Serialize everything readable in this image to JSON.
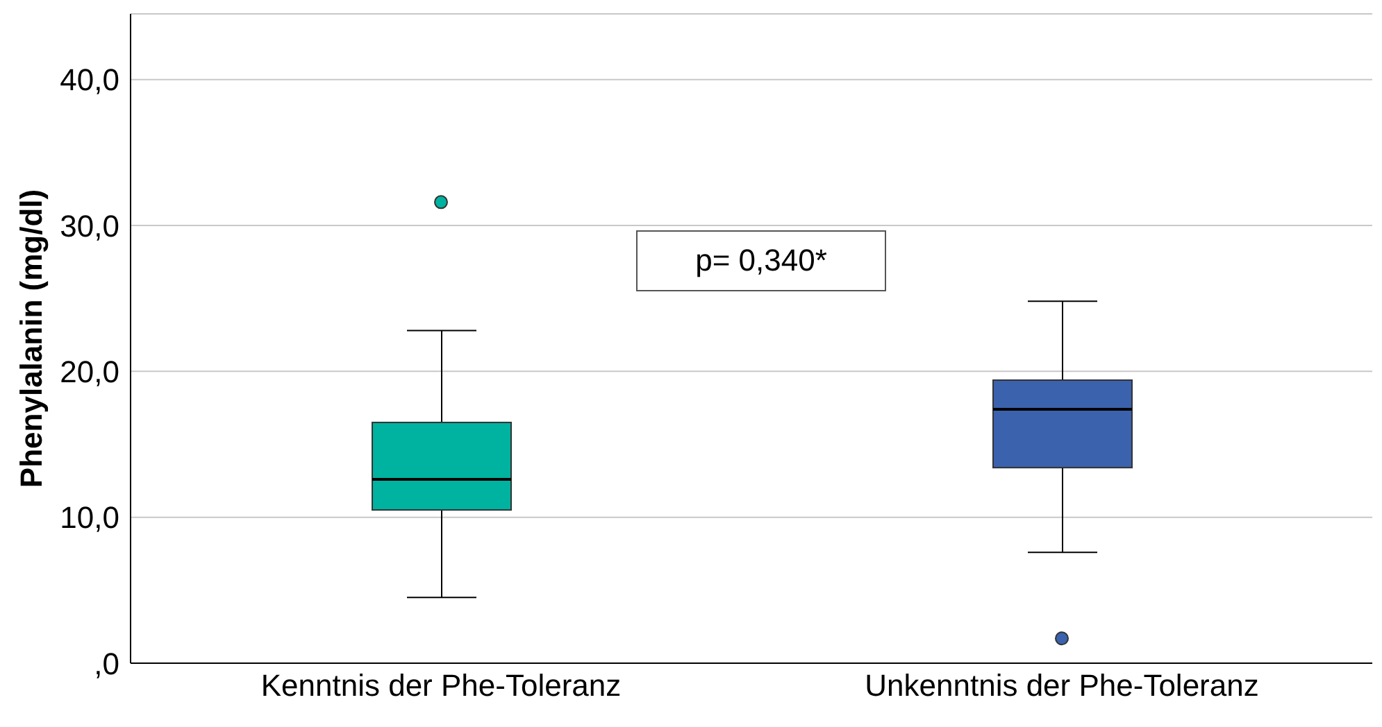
{
  "chart_data": {
    "type": "box",
    "ylabel": "Phenylalanin (mg/dl)",
    "categories": [
      "Kenntnis der Phe-Toleranz",
      "Unkenntnis der Phe-Toleranz"
    ],
    "colors": [
      "#00b2a0",
      "#3b62ad"
    ],
    "boxes": [
      {
        "low": 4.5,
        "q1": 10.5,
        "median": 12.6,
        "q3": 16.5,
        "high": 22.8,
        "outliers": [
          31.6
        ]
      },
      {
        "low": 7.6,
        "q1": 13.4,
        "median": 17.4,
        "q3": 19.4,
        "high": 24.8,
        "outliers": [
          1.7
        ]
      }
    ],
    "ylim": [
      0,
      44.5
    ],
    "yticks": [
      {
        "value": 0,
        "label": ",0"
      },
      {
        "value": 10,
        "label": "10,0"
      },
      {
        "value": 20,
        "label": "20,0"
      },
      {
        "value": 30,
        "label": "30,0"
      },
      {
        "value": 40,
        "label": "40,0"
      }
    ],
    "grid": "y",
    "annotations": [
      "p= 0,340*"
    ]
  }
}
